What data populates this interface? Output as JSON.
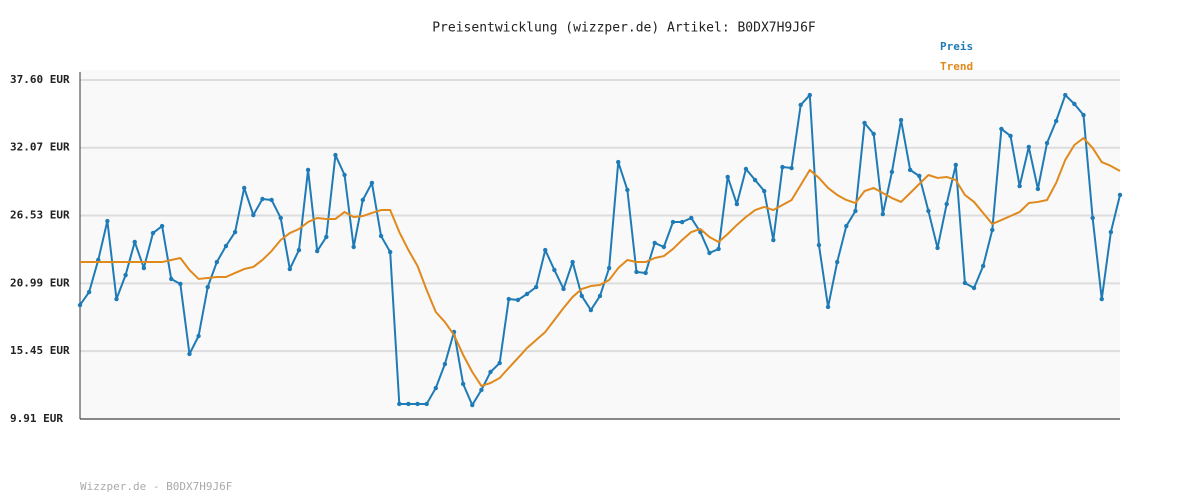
{
  "chart_data": {
    "type": "line",
    "title": "Preisentwicklung (wizzper.de) Artikel: B0DX7H9J6F",
    "footer": "Wizzper.de - B0DX7H9J6F",
    "grid": true,
    "legend": "top-right",
    "ylim": [
      9.91,
      37.6
    ],
    "yticks": [
      {
        "value": 9.91,
        "label": "9.91 EUR"
      },
      {
        "value": 15.45,
        "label": "15.45 EUR"
      },
      {
        "value": 20.99,
        "label": "20.99 EUR"
      },
      {
        "value": 26.53,
        "label": "26.53 EUR"
      },
      {
        "value": 32.07,
        "label": "32.07 EUR"
      },
      {
        "value": 37.6,
        "label": "37.60 EUR"
      }
    ],
    "categories": [
      null,
      null,
      null,
      null,
      null,
      null,
      null,
      null,
      null,
      null,
      null,
      null,
      null,
      null,
      null,
      null,
      null,
      null,
      null,
      null,
      null,
      null,
      null,
      null,
      null,
      null,
      null,
      null,
      null,
      null,
      null,
      null,
      null,
      null,
      null,
      null,
      null,
      null,
      null,
      null,
      null,
      null,
      null,
      null,
      null,
      null,
      null,
      null,
      null,
      null,
      null,
      null,
      null,
      null,
      null,
      null,
      null,
      null,
      null,
      null,
      null,
      null,
      null,
      null,
      null,
      null,
      null,
      null,
      null,
      null,
      null,
      null,
      null,
      null,
      null,
      null,
      null,
      null,
      null,
      null,
      null,
      null,
      null,
      null,
      null,
      null,
      null,
      null,
      null,
      null,
      null,
      null,
      null,
      null,
      null,
      null,
      null,
      null,
      null,
      null,
      null,
      null,
      null,
      null,
      null,
      null,
      null,
      null,
      null,
      null,
      null,
      null,
      null,
      null,
      null
    ],
    "series": [
      {
        "name": "Preis",
        "color": "#1f7bb6",
        "markers": true,
        "values": [
          19.22,
          20.28,
          22.9,
          26.08,
          19.71,
          21.67,
          24.37,
          22.24,
          25.1,
          25.67,
          21.35,
          20.94,
          15.22,
          16.69,
          20.69,
          22.73,
          24.04,
          25.18,
          28.78,
          26.57,
          27.88,
          27.8,
          26.33,
          22.16,
          23.71,
          30.25,
          23.63,
          24.78,
          31.47,
          29.84,
          23.96,
          27.8,
          29.19,
          24.86,
          23.55,
          11.14,
          11.14,
          11.14,
          11.14,
          12.44,
          14.4,
          17.02,
          12.77,
          11.05,
          12.28,
          13.75,
          14.48,
          19.71,
          19.63,
          20.12,
          20.69,
          23.71,
          22.08,
          20.53,
          22.73,
          19.96,
          18.81,
          19.96,
          22.24,
          30.9,
          28.62,
          21.92,
          21.84,
          24.29,
          23.96,
          26.0,
          26.0,
          26.33,
          25.18,
          23.47,
          23.8,
          29.68,
          27.47,
          30.33,
          29.43,
          28.53,
          24.53,
          30.49,
          30.41,
          35.56,
          36.37,
          24.12,
          19.06,
          22.73,
          25.67,
          26.9,
          34.09,
          33.19,
          26.65,
          30.09,
          34.33,
          30.25,
          29.76,
          26.9,
          23.88,
          27.47,
          30.66,
          21.02,
          20.61,
          22.41,
          25.35,
          33.6,
          33.03,
          28.94,
          32.13,
          28.7,
          32.45,
          34.25,
          36.37,
          35.64,
          34.74,
          26.33,
          19.71,
          25.18,
          28.21
        ]
      },
      {
        "name": "Trend",
        "color": "#e0891c",
        "markers": false,
        "values": [
          22.73,
          22.73,
          22.73,
          22.73,
          22.73,
          22.73,
          22.73,
          22.73,
          22.73,
          22.73,
          22.9,
          23.06,
          22.08,
          21.35,
          21.43,
          21.51,
          21.51,
          21.84,
          22.16,
          22.33,
          22.9,
          23.63,
          24.53,
          25.1,
          25.43,
          26.0,
          26.33,
          26.25,
          26.25,
          26.82,
          26.41,
          26.49,
          26.74,
          26.98,
          26.98,
          25.18,
          23.71,
          22.41,
          20.45,
          18.65,
          17.83,
          16.77,
          15.14,
          13.75,
          12.61,
          12.85,
          13.26,
          14.08,
          14.89,
          15.71,
          16.36,
          17.02,
          18.0,
          18.98,
          19.88,
          20.53,
          20.77,
          20.86,
          21.26,
          22.24,
          22.9,
          22.73,
          22.73,
          23.06,
          23.22,
          23.8,
          24.53,
          25.18,
          25.43,
          24.78,
          24.37,
          25.02,
          25.76,
          26.41,
          26.98,
          27.23,
          26.98,
          27.39,
          27.8,
          29.02,
          30.25,
          29.6,
          28.78,
          28.21,
          27.8,
          27.55,
          28.53,
          28.78,
          28.37,
          27.96,
          27.64,
          28.37,
          29.11,
          29.84,
          29.6,
          29.68,
          29.43,
          28.21,
          27.64,
          26.74,
          25.84,
          26.16,
          26.49,
          26.82,
          27.55,
          27.64,
          27.8,
          29.19,
          31.07,
          32.29,
          32.86,
          32.05,
          30.9,
          30.58,
          30.17
        ]
      }
    ]
  }
}
